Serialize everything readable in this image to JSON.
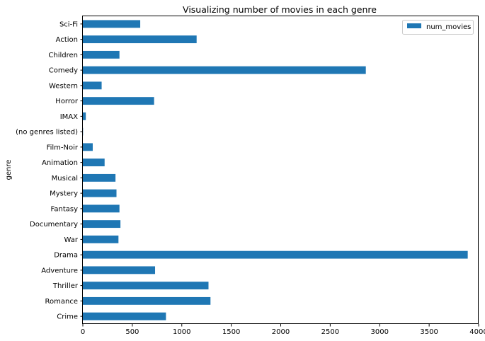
{
  "chart_data": {
    "type": "bar",
    "orientation": "horizontal",
    "title": "Visualizing number of movies in each genre",
    "xlabel": "",
    "ylabel": "genre",
    "xlim": [
      0,
      4000
    ],
    "xticks": [
      0,
      500,
      1000,
      1500,
      2000,
      2500,
      3000,
      3500,
      4000
    ],
    "grid": false,
    "legend_position": "top-right",
    "bar_color": "#1f77b4",
    "categories": [
      "Crime",
      "Romance",
      "Thriller",
      "Adventure",
      "Drama",
      "War",
      "Documentary",
      "Fantasy",
      "Mystery",
      "Musical",
      "Animation",
      "Film-Noir",
      "(no genres listed)",
      "IMAX",
      "Horror",
      "Western",
      "Comedy",
      "Children",
      "Action",
      "Sci-Fi"
    ],
    "series": [
      {
        "name": "num_movies",
        "values": [
          840,
          1290,
          1270,
          730,
          3890,
          360,
          380,
          370,
          340,
          330,
          220,
          100,
          2,
          30,
          720,
          190,
          2860,
          370,
          1150,
          580
        ]
      }
    ]
  }
}
